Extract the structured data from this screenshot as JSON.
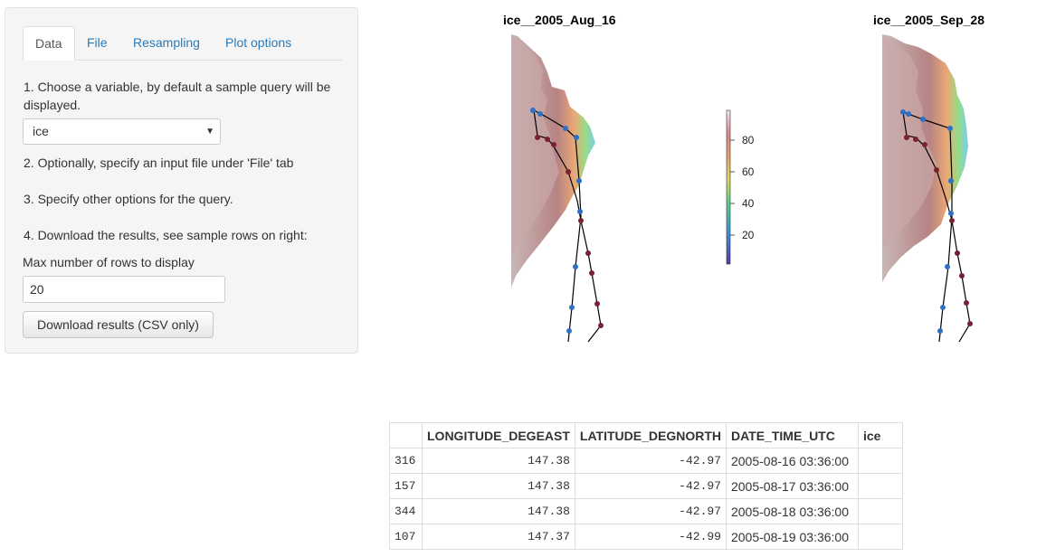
{
  "sidebar": {
    "tabs": [
      {
        "label": "Data",
        "active": true
      },
      {
        "label": "File"
      },
      {
        "label": "Resampling"
      },
      {
        "label": "Plot options"
      }
    ],
    "step1": "1. Choose a variable, by default a sample query will be displayed.",
    "variable_select": "ice",
    "step2": "2. Optionally, specify an input file under 'File' tab",
    "step3": "3. Specify other options for the query.",
    "step4": "4. Download the results, see sample rows on right:",
    "max_rows_label": "Max number of rows to display",
    "max_rows_value": "20",
    "download_label": "Download results (CSV only)"
  },
  "plots": {
    "left_title": "ice__2005_Aug_16",
    "right_title": "ice__2005_Sep_28",
    "colorbar_ticks": [
      "80",
      "60",
      "40",
      "20"
    ]
  },
  "table": {
    "headers": [
      "",
      "LONGITUDE_DEGEAST",
      "LATITUDE_DEGNORTH",
      "DATE_TIME_UTC",
      "ice"
    ],
    "rows": [
      [
        "316",
        "147.38",
        "-42.97",
        "2005-08-16 03:36:00",
        ""
      ],
      [
        "157",
        "147.38",
        "-42.97",
        "2005-08-17 03:36:00",
        ""
      ],
      [
        "344",
        "147.38",
        "-42.97",
        "2005-08-18 03:36:00",
        ""
      ],
      [
        "107",
        "147.37",
        "-42.99",
        "2005-08-19 03:36:00",
        ""
      ]
    ]
  },
  "colors": {
    "link": "#2a7ab8",
    "track_blue": "#2f6fc4",
    "track_red": "#7a2033"
  }
}
